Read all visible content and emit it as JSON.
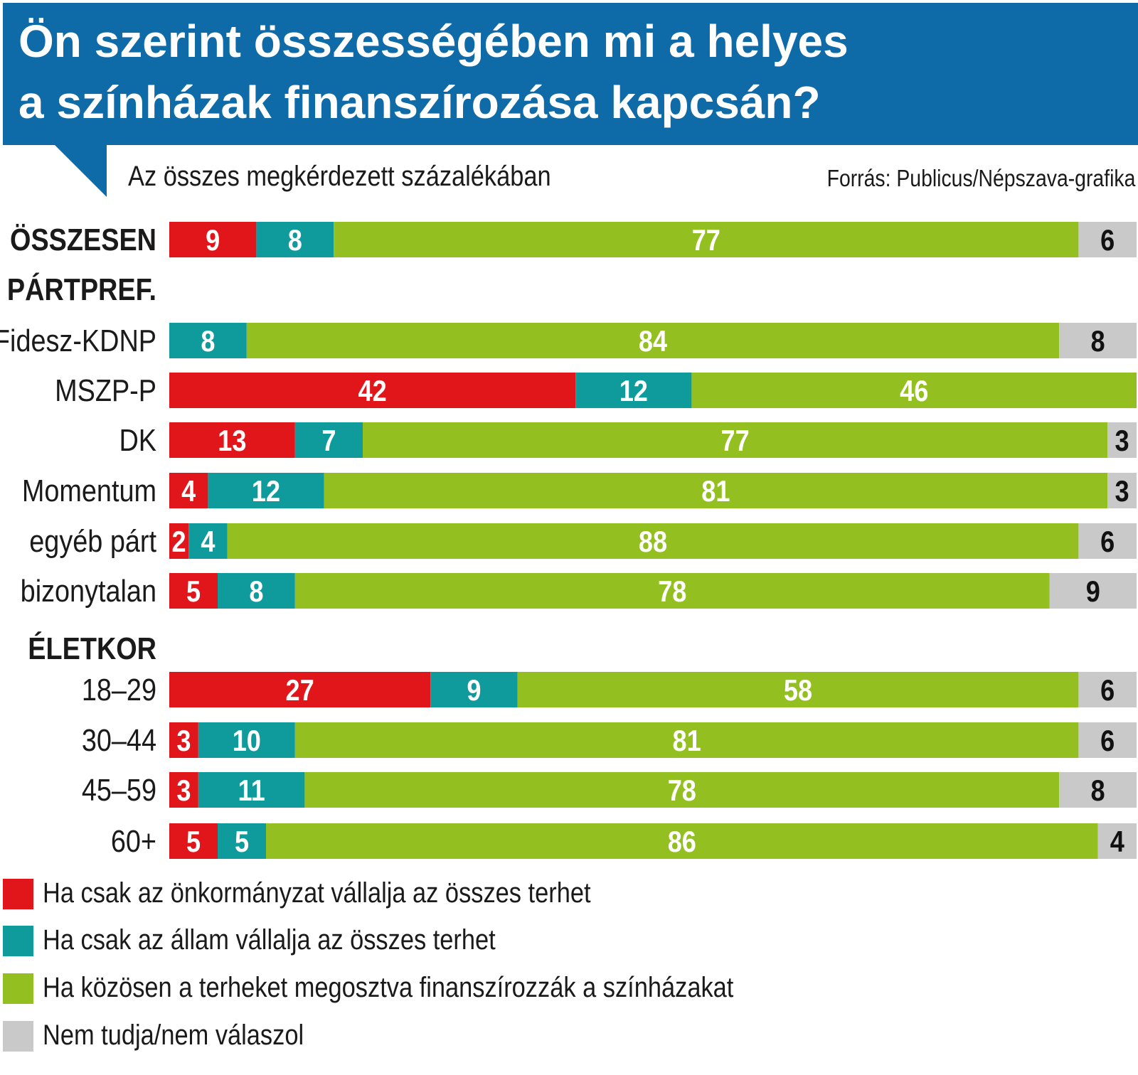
{
  "title": {
    "line1": "Ön szerint összességében mi a helyes",
    "line2": "a színházak finanszírozása kapcsán?"
  },
  "subtitle": "Az összes megkérdezett százalékában",
  "source": "Forrás: Publicus/Népszava-grafika",
  "colors": {
    "header": "#0f6aa8",
    "onkormanyzat": "#e0161b",
    "allam": "#0f9a9c",
    "kozosen": "#93c020",
    "nem_tudja": "#c9c9c9"
  },
  "chart_data": {
    "type": "bar",
    "orientation": "horizontal",
    "stacked": true,
    "xlim": [
      0,
      100
    ],
    "series": [
      {
        "name": "Ha csak az önkormányzat vállalja az összes terhet",
        "color_key": "onkormanyzat"
      },
      {
        "name": "Ha csak az állam vállalja az összes terhet",
        "color_key": "allam"
      },
      {
        "name": "Ha közösen a terheket megosztva finanszírozzák a színházakat",
        "color_key": "kozosen"
      },
      {
        "name": "Nem tudja/nem válaszol",
        "color_key": "nem_tudja"
      }
    ],
    "rows": [
      {
        "label": "ÖSSZESEN",
        "heading": true,
        "values": [
          9,
          8,
          77,
          6
        ]
      },
      {
        "label": "PÁRTPREF.",
        "heading": true,
        "values": null
      },
      {
        "label": "Fidesz-KDNP",
        "heading": false,
        "values": [
          0,
          8,
          84,
          8
        ]
      },
      {
        "label": "MSZP-P",
        "heading": false,
        "values": [
          42,
          12,
          46,
          0
        ]
      },
      {
        "label": "DK",
        "heading": false,
        "values": [
          13,
          7,
          77,
          3
        ]
      },
      {
        "label": "Momentum",
        "heading": false,
        "values": [
          4,
          12,
          81,
          3
        ]
      },
      {
        "label": "egyéb párt",
        "heading": false,
        "values": [
          2,
          4,
          88,
          6
        ]
      },
      {
        "label": "bizonytalan",
        "heading": false,
        "values": [
          5,
          8,
          78,
          9
        ]
      },
      {
        "label": "ÉLETKOR",
        "heading": true,
        "values": null
      },
      {
        "label": "18–29",
        "heading": false,
        "values": [
          27,
          9,
          58,
          6
        ]
      },
      {
        "label": "30–44",
        "heading": false,
        "values": [
          3,
          10,
          81,
          6
        ]
      },
      {
        "label": "45–59",
        "heading": false,
        "values": [
          3,
          11,
          78,
          8
        ]
      },
      {
        "label": "60+",
        "heading": false,
        "values": [
          5,
          5,
          86,
          4
        ]
      }
    ]
  },
  "legend": [
    {
      "label": "Ha csak az önkormányzat vállalja az összes terhet",
      "color_key": "onkormanyzat"
    },
    {
      "label": "Ha csak az állam vállalja az összes terhet",
      "color_key": "allam"
    },
    {
      "label": "Ha közösen a terheket megosztva finanszírozzák a színházakat",
      "color_key": "kozosen"
    },
    {
      "label": "Nem tudja/nem válaszol",
      "color_key": "nem_tudja"
    }
  ]
}
